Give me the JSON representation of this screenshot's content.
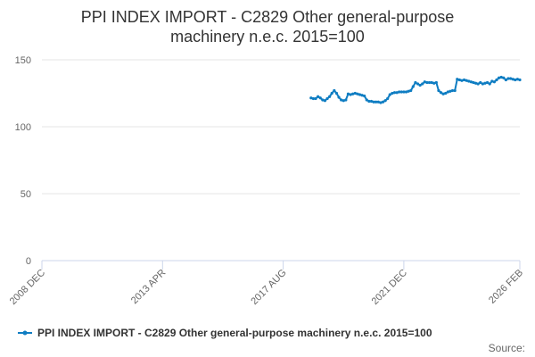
{
  "chart_data": {
    "type": "line",
    "title": "PPI INDEX IMPORT - C2829 Other general-purpose machinery n.e.c. 2015=100",
    "source": "Source:",
    "x": [
      "2018 AUG",
      "2018 SEP",
      "2018 OCT",
      "2018 NOV",
      "2018 DEC",
      "2019 JAN",
      "2019 FEB",
      "2019 MAR",
      "2019 APR",
      "2019 MAY",
      "2019 JUN",
      "2019 JUL",
      "2019 AUG",
      "2019 SEP",
      "2019 OCT",
      "2019 NOV",
      "2019 DEC",
      "2020 JAN",
      "2020 FEB",
      "2020 MAR",
      "2020 APR",
      "2020 MAY",
      "2020 JUN",
      "2020 JUL",
      "2020 AUG",
      "2020 SEP",
      "2020 OCT",
      "2020 NOV",
      "2020 DEC",
      "2021 JAN",
      "2021 FEB",
      "2021 MAR",
      "2021 APR",
      "2021 MAY",
      "2021 JUN",
      "2021 JUL",
      "2021 AUG",
      "2021 SEP",
      "2021 OCT",
      "2021 NOV",
      "2021 DEC",
      "2022 JAN",
      "2022 FEB",
      "2022 MAR",
      "2022 APR",
      "2022 MAY",
      "2022 JUN",
      "2022 JUL",
      "2022 AUG",
      "2022 SEP",
      "2022 OCT",
      "2022 NOV",
      "2022 DEC",
      "2023 JAN",
      "2023 FEB",
      "2023 MAR",
      "2023 APR",
      "2023 MAY",
      "2023 JUN",
      "2023 JUL",
      "2023 AUG",
      "2023 SEP",
      "2023 OCT",
      "2023 NOV",
      "2023 DEC",
      "2024 JAN",
      "2024 FEB",
      "2024 MAR",
      "2024 APR",
      "2024 MAY",
      "2024 JUN",
      "2024 JUL",
      "2024 AUG",
      "2024 SEP",
      "2024 OCT",
      "2024 NOV",
      "2024 DEC",
      "2025 JAN",
      "2025 FEB",
      "2025 MAR",
      "2025 APR",
      "2025 MAY",
      "2025 JUN",
      "2025 JUL",
      "2025 AUG",
      "2025 SEP",
      "2025 OCT",
      "2025 NOV",
      "2025 DEC",
      "2026 JAN",
      "2026 FEB"
    ],
    "series": [
      {
        "name": "PPI INDEX IMPORT - C2829 Other general-purpose machinery n.e.c. 2015=100",
        "color": "#0f7dc2",
        "values": [
          121.5,
          121,
          121,
          122.5,
          121.5,
          120,
          119.5,
          121,
          122.5,
          125,
          127,
          125,
          122,
          120,
          119.5,
          120,
          124.5,
          124,
          124.5,
          125,
          124.5,
          124,
          123.5,
          123,
          120,
          119,
          119,
          118.5,
          118.5,
          118.5,
          118,
          118.5,
          119.5,
          121,
          124,
          125,
          125.5,
          125.5,
          126,
          126,
          126,
          126,
          126.5,
          127,
          130,
          133,
          132,
          131,
          132,
          133.5,
          133,
          133,
          133,
          132.5,
          133,
          127,
          125.5,
          124.5,
          125,
          126,
          126.5,
          127,
          127,
          135.5,
          135,
          134.5,
          135,
          134.5,
          134,
          133.5,
          133,
          132.5,
          132,
          133,
          132,
          132.5,
          133,
          132,
          134,
          133.5,
          135,
          136.5,
          137,
          136.5,
          135,
          136,
          136,
          135.5,
          135,
          135.5,
          135
        ]
      }
    ],
    "xlim": [
      "2008 DEC",
      "2026 FEB"
    ],
    "xticks": [
      "2008 DEC",
      "2013 APR",
      "2017 AUG",
      "2021 DEC",
      "2026 FEB"
    ],
    "ylim": [
      0,
      150
    ],
    "yticks": [
      0,
      50,
      100,
      150
    ],
    "grid": true
  }
}
